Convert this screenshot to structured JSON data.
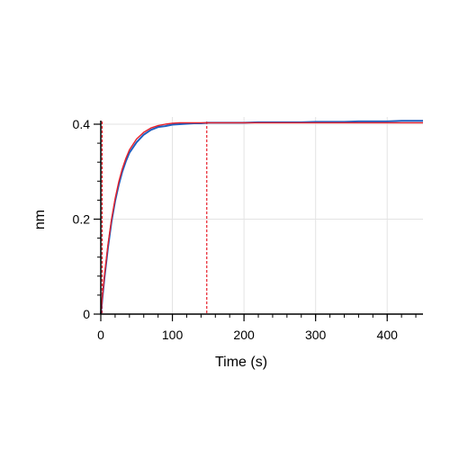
{
  "chart_data": {
    "type": "line",
    "title": "",
    "xlabel": "Time (s)",
    "ylabel": "nm",
    "xlim": [
      0,
      450
    ],
    "ylim": [
      0,
      0.4
    ],
    "grid": true,
    "legend": "none",
    "x_ticks": [
      0,
      100,
      200,
      300,
      400
    ],
    "x_tick_labels": [
      "0",
      "100",
      "200",
      "300",
      "400"
    ],
    "y_ticks": [
      0,
      0.2,
      0.4
    ],
    "y_tick_labels": [
      "0",
      "0.2",
      "0.4"
    ],
    "x_minor_step": 20,
    "y_minor_step": 0.04,
    "series": [
      {
        "color": "#1f5fbf",
        "x": [
          0,
          2,
          5,
          10,
          15,
          20,
          25,
          30,
          35,
          40,
          50,
          60,
          70,
          80,
          90,
          100,
          110,
          120,
          130,
          140,
          150,
          160,
          180,
          200,
          220,
          240,
          260,
          280,
          300,
          320,
          340,
          360,
          380,
          400,
          420,
          440,
          450
        ],
        "y": [
          0,
          0.03,
          0.075,
          0.14,
          0.195,
          0.238,
          0.272,
          0.3,
          0.322,
          0.34,
          0.362,
          0.378,
          0.388,
          0.394,
          0.396,
          0.399,
          0.4,
          0.401,
          0.402,
          0.402,
          0.403,
          0.403,
          0.403,
          0.403,
          0.404,
          0.404,
          0.404,
          0.404,
          0.405,
          0.405,
          0.405,
          0.406,
          0.406,
          0.406,
          0.407,
          0.407,
          0.407
        ]
      },
      {
        "color": "#e8202a",
        "x": [
          0,
          2,
          5,
          10,
          15,
          20,
          25,
          30,
          35,
          40,
          50,
          60,
          70,
          80,
          90,
          100,
          110,
          120,
          130,
          140,
          150,
          160,
          180,
          200,
          250,
          300,
          350,
          400,
          450
        ],
        "y": [
          0,
          0.034,
          0.08,
          0.146,
          0.2,
          0.243,
          0.278,
          0.306,
          0.328,
          0.346,
          0.369,
          0.383,
          0.392,
          0.397,
          0.4,
          0.402,
          0.403,
          0.403,
          0.403,
          0.403,
          0.403,
          0.403,
          0.403,
          0.403,
          0.403,
          0.403,
          0.403,
          0.403,
          0.403
        ]
      }
    ],
    "reference_lines": [
      {
        "axis": "x",
        "value": 0,
        "color": "#e8202a",
        "style": "dashed"
      },
      {
        "axis": "x",
        "value": 148,
        "color": "#e8202a",
        "style": "dashed"
      }
    ]
  }
}
